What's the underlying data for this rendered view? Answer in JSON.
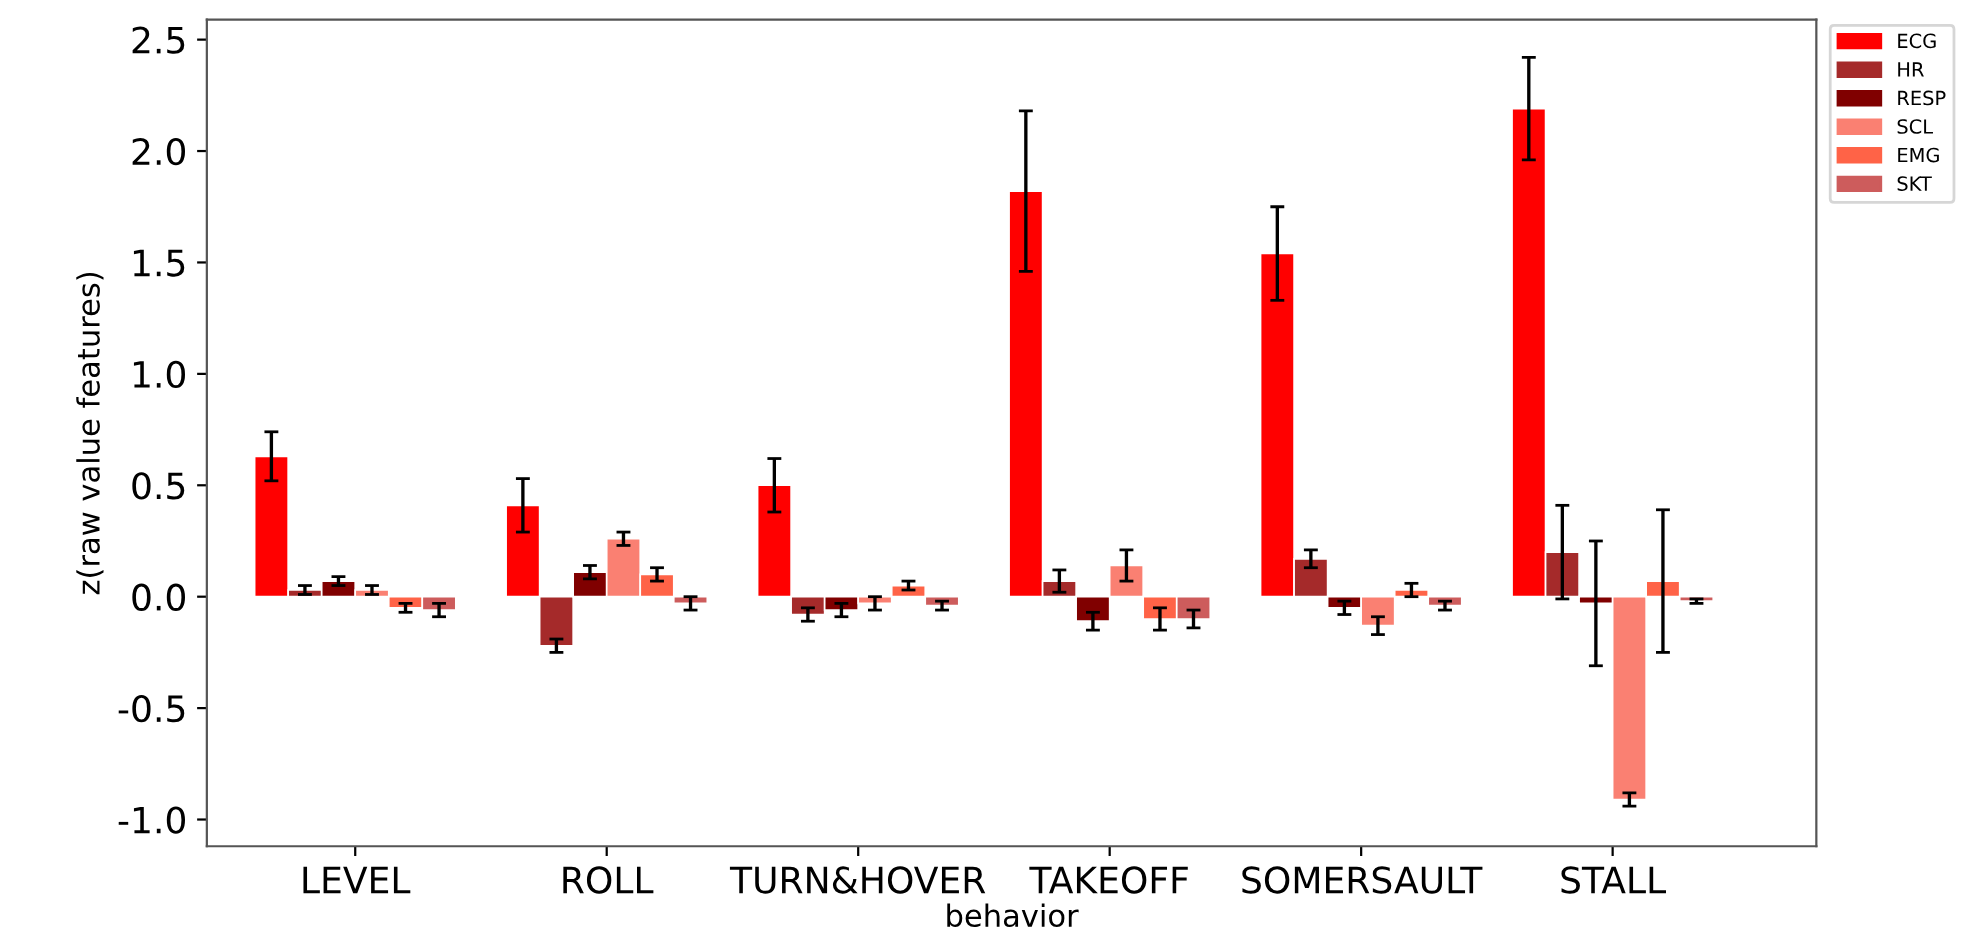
{
  "chart_data": {
    "type": "bar",
    "xlabel": "behavior",
    "ylabel": "z(raw value features)",
    "categories": [
      "LEVEL",
      "ROLL",
      "TURN&HOVER",
      "TAKEOFF",
      "SOMERSAULT",
      "STALL"
    ],
    "series": [
      {
        "name": "ECG",
        "color": "#ff0000",
        "values": [
          0.63,
          0.41,
          0.5,
          1.82,
          1.54,
          2.19
        ],
        "errors": [
          0.11,
          0.12,
          0.12,
          0.36,
          0.21,
          0.23
        ]
      },
      {
        "name": "HR",
        "color": "#a52a2a",
        "values": [
          0.03,
          -0.22,
          -0.08,
          0.07,
          0.17,
          0.2
        ],
        "errors": [
          0.02,
          0.03,
          0.03,
          0.05,
          0.04,
          0.21
        ]
      },
      {
        "name": "RESP",
        "color": "#800000",
        "values": [
          0.07,
          0.11,
          -0.06,
          -0.11,
          -0.05,
          -0.03
        ],
        "errors": [
          0.02,
          0.03,
          0.03,
          0.04,
          0.03,
          0.28
        ]
      },
      {
        "name": "SCL",
        "color": "#fa8072",
        "values": [
          0.03,
          0.26,
          -0.03,
          0.14,
          -0.13,
          -0.91
        ],
        "errors": [
          0.02,
          0.03,
          0.03,
          0.07,
          0.04,
          0.03
        ]
      },
      {
        "name": "EMG",
        "color": "#ff6347",
        "values": [
          -0.05,
          0.1,
          0.05,
          -0.1,
          0.03,
          0.07
        ],
        "errors": [
          0.02,
          0.03,
          0.02,
          0.05,
          0.03,
          0.32
        ]
      },
      {
        "name": "SKT",
        "color": "#cd5c5c",
        "values": [
          -0.06,
          -0.03,
          -0.04,
          -0.1,
          -0.04,
          -0.02
        ],
        "errors": [
          0.03,
          0.03,
          0.02,
          0.04,
          0.02,
          0.01
        ]
      }
    ],
    "ylim": [
      -1.12,
      2.59
    ],
    "yticks": [
      {
        "value": -1,
        "label": "-1.0"
      },
      -0.5,
      {
        "value": 0,
        "label": "0.0"
      },
      0.5,
      {
        "value": 1,
        "label": "1.0"
      },
      1.5,
      {
        "value": 2,
        "label": "2.0"
      },
      2.5
    ],
    "grid": false,
    "legend": "top right"
  }
}
